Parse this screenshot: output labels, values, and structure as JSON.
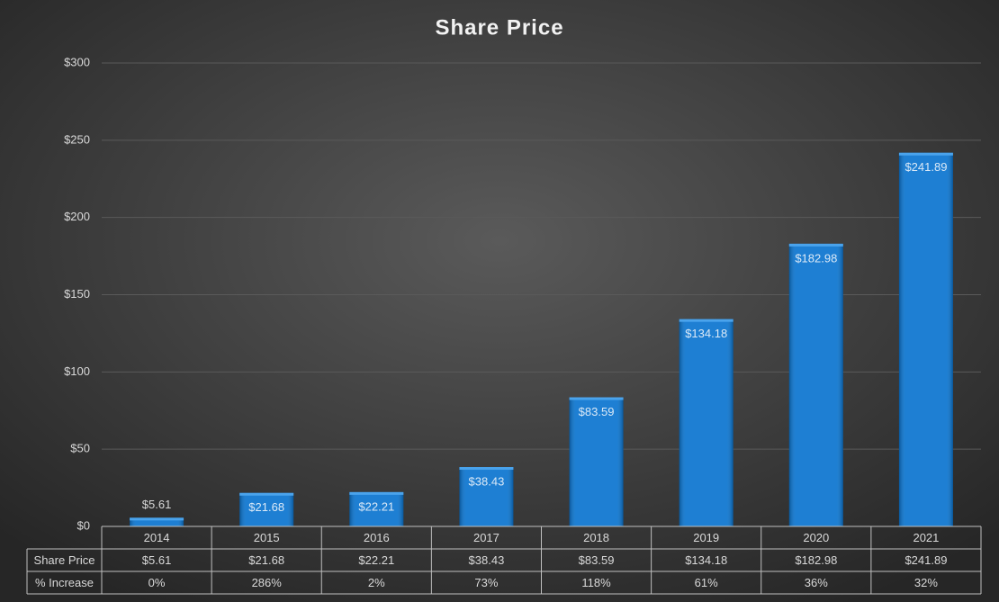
{
  "chart_data": {
    "type": "bar",
    "title": "Share Price",
    "categories": [
      "2014",
      "2015",
      "2016",
      "2017",
      "2018",
      "2019",
      "2020",
      "2021"
    ],
    "series": [
      {
        "name": "Share Price",
        "color": "#0a74cf",
        "values": [
          5.61,
          21.68,
          22.21,
          38.43,
          83.59,
          134.18,
          182.98,
          241.89
        ],
        "value_labels": [
          "$5.61",
          "$21.68",
          "$22.21",
          "$38.43",
          "$83.59",
          "$134.18",
          "$182.98",
          "$241.89"
        ]
      }
    ],
    "ylim": [
      0,
      300
    ],
    "yticks": [
      {
        "value": 0,
        "label": "$0"
      },
      {
        "value": 50,
        "label": "$50"
      },
      {
        "value": 100,
        "label": "$100"
      },
      {
        "value": 150,
        "label": "$150"
      },
      {
        "value": 200,
        "label": "$200"
      },
      {
        "value": 250,
        "label": "$250"
      },
      {
        "value": 300,
        "label": "$300"
      }
    ],
    "grid": true,
    "data_table": {
      "rows": [
        {
          "label": "% Increase",
          "cells": [
            "0%",
            "286%",
            "2%",
            "73%",
            "118%",
            "61%",
            "36%",
            "32%"
          ]
        }
      ]
    }
  }
}
